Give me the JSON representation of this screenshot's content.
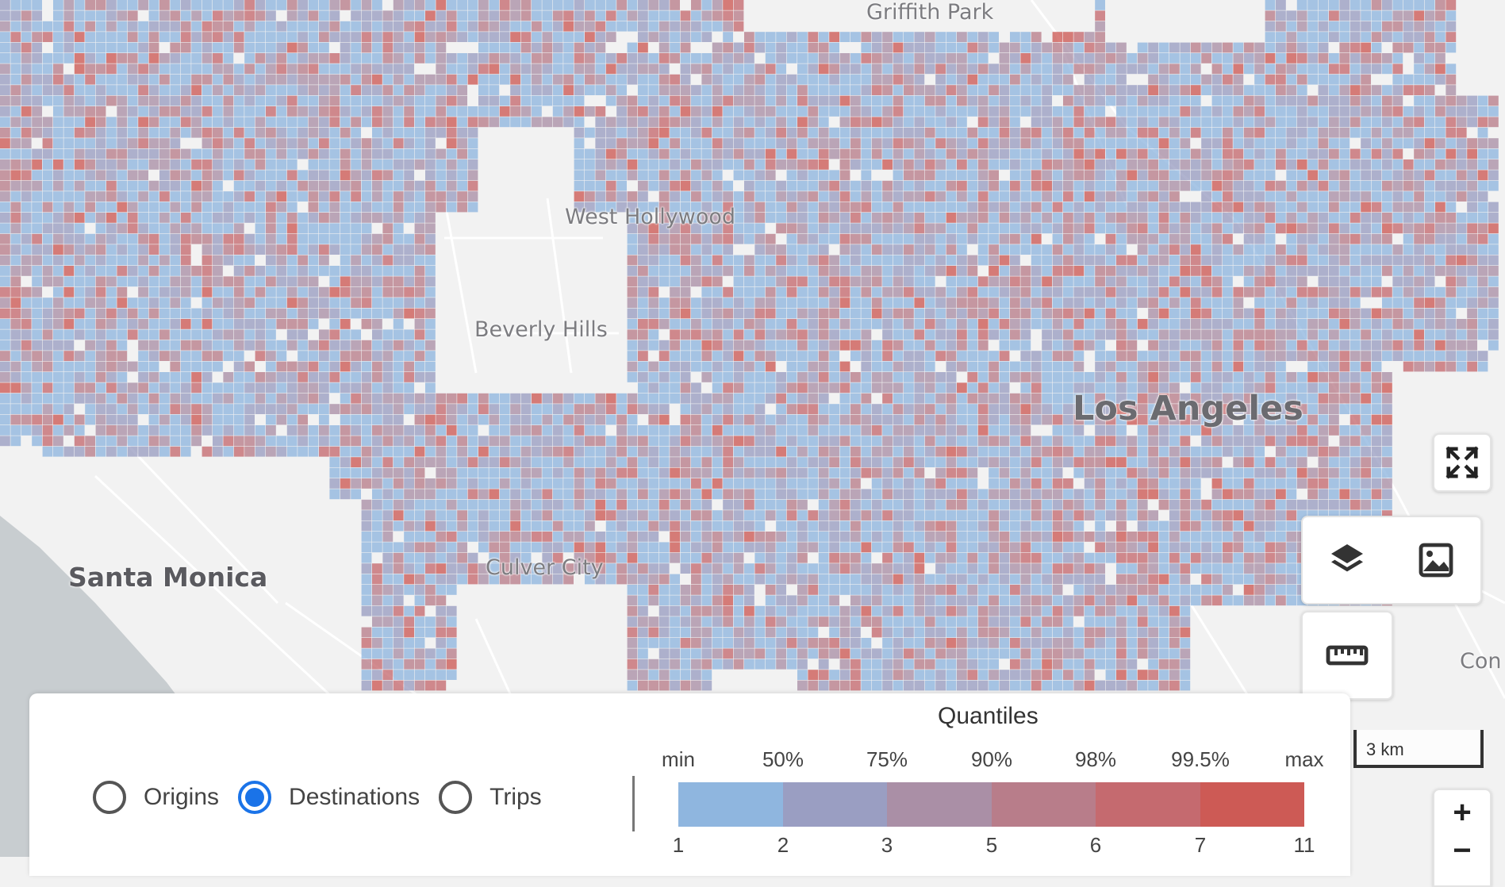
{
  "map": {
    "places": [
      {
        "name": "Griffith Park",
        "size": "small"
      },
      {
        "name": "West Hollywood",
        "size": "small"
      },
      {
        "name": "Beverly Hills",
        "size": "small"
      },
      {
        "name": "Los Angeles",
        "size": "big"
      },
      {
        "name": "Santa Monica",
        "size": "medium"
      },
      {
        "name": "Culver City",
        "size": "small"
      },
      {
        "name": "Con",
        "size": "small"
      }
    ],
    "water_color": "#c8cdd0",
    "land_color": "#f2f2f2",
    "road_color": "#ffffff"
  },
  "controls": {
    "fullscreen_icon": "expand-arrows-icon",
    "layers_icon": "layers-icon",
    "basemap_icon": "image-icon",
    "ruler_icon": "ruler-icon",
    "zoom_in_label": "+",
    "zoom_out_label": "−",
    "scale_label": "3 km"
  },
  "panel": {
    "radio_options": [
      {
        "label": "Origins",
        "checked": false
      },
      {
        "label": "Destinations",
        "checked": true
      },
      {
        "label": "Trips",
        "checked": false
      }
    ],
    "legend": {
      "title": "Quantiles",
      "top_labels": [
        "min",
        "50%",
        "75%",
        "90%",
        "98%",
        "99.5%",
        "max"
      ],
      "bottom_labels": [
        "1",
        "2",
        "3",
        "5",
        "6",
        "7",
        "11"
      ],
      "colors": [
        "#8fb6df",
        "#9a9ec2",
        "#aa8fa6",
        "#b87d8a",
        "#c56a6f",
        "#cd5a55"
      ]
    }
  }
}
